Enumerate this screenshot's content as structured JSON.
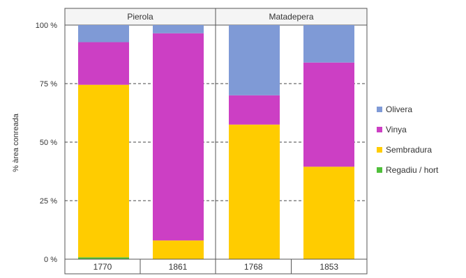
{
  "chart_data": {
    "type": "bar",
    "stacked": true,
    "ylabel": "% àrea conreada",
    "y_ticks": [
      "0 %",
      "25 %",
      "50 %",
      "75 %",
      "100 %"
    ],
    "ylim": [
      0,
      100
    ],
    "grid": "horizontal dashed",
    "legend_position": "right",
    "panels": [
      {
        "title": "Pierola",
        "categories": [
          "1770",
          "1861"
        ],
        "series": [
          {
            "name": "Regadiu / hort",
            "color": "#4fbf3a",
            "values": [
              0.8,
              0
            ]
          },
          {
            "name": "Sembradura",
            "color": "#ffcc00",
            "values": [
              73.7,
              8
            ]
          },
          {
            "name": "Vinya",
            "color": "#cc3fc4",
            "values": [
              18.2,
              88.5
            ]
          },
          {
            "name": "Olivera",
            "color": "#7f9ad6",
            "values": [
              7.3,
              3.5
            ]
          }
        ]
      },
      {
        "title": "Matadepera",
        "categories": [
          "1768",
          "1853"
        ],
        "series": [
          {
            "name": "Regadiu / hort",
            "color": "#4fbf3a",
            "values": [
              0,
              0
            ]
          },
          {
            "name": "Sembradura",
            "color": "#ffcc00",
            "values": [
              57.5,
              39.5
            ]
          },
          {
            "name": "Vinya",
            "color": "#cc3fc4",
            "values": [
              12.5,
              44.5
            ]
          },
          {
            "name": "Olivera",
            "color": "#7f9ad6",
            "values": [
              30,
              16
            ]
          }
        ]
      }
    ],
    "legend": [
      {
        "name": "Olivera",
        "color": "#7f9ad6"
      },
      {
        "name": "Vinya",
        "color": "#cc3fc4"
      },
      {
        "name": "Sembradura",
        "color": "#ffcc00"
      },
      {
        "name": "Regadiu / hort",
        "color": "#4fbf3a"
      }
    ]
  }
}
